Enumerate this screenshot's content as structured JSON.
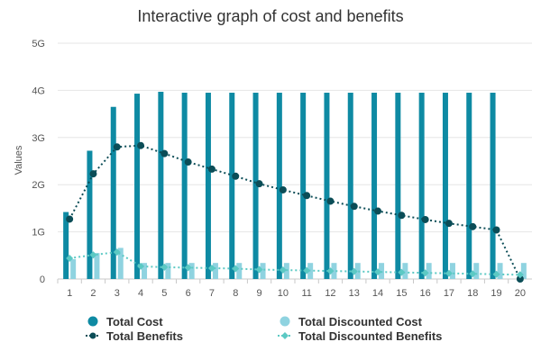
{
  "chart_data": {
    "type": "bar",
    "title": "Interactive graph of cost and benefits",
    "xlabel": "",
    "ylabel": "Values",
    "categories": [
      "1",
      "2",
      "3",
      "4",
      "5",
      "6",
      "7",
      "8",
      "9",
      "10",
      "11",
      "12",
      "13",
      "14",
      "15",
      "16",
      "17",
      "18",
      "19",
      "20"
    ],
    "y_ticks": [
      "0",
      "1G",
      "2G",
      "3G",
      "4G",
      "5G"
    ],
    "ylim": [
      0,
      5
    ],
    "y_unit": "G",
    "grid": true,
    "legend_position": "bottom",
    "series": [
      {
        "name": "Total Cost",
        "kind": "bar",
        "color": "#0e8aa3",
        "values": [
          1.42,
          2.72,
          3.65,
          3.93,
          3.97,
          3.95,
          3.95,
          3.95,
          3.95,
          3.95,
          3.95,
          3.95,
          3.95,
          3.95,
          3.95,
          3.95,
          3.95,
          3.95,
          3.95,
          null
        ]
      },
      {
        "name": "Total Discounted Cost",
        "kind": "bar",
        "color": "#8fd3e0",
        "values": [
          0.42,
          0.55,
          0.66,
          0.34,
          0.34,
          0.34,
          0.34,
          0.34,
          0.34,
          0.34,
          0.34,
          0.34,
          0.34,
          0.34,
          0.34,
          0.34,
          0.34,
          0.34,
          0.34,
          0.34
        ]
      },
      {
        "name": "Total Benefits",
        "kind": "line",
        "color": "#0b4d57",
        "values": [
          1.27,
          2.23,
          2.8,
          2.83,
          2.66,
          2.48,
          2.33,
          2.18,
          2.02,
          1.89,
          1.77,
          1.65,
          1.54,
          1.44,
          1.35,
          1.26,
          1.18,
          1.11,
          1.04,
          0.0
        ]
      },
      {
        "name": "Total Discounted Benefits",
        "kind": "line",
        "color": "#5cc9c4",
        "values": [
          0.44,
          0.51,
          0.57,
          0.27,
          0.25,
          0.24,
          0.23,
          0.22,
          0.2,
          0.19,
          0.18,
          0.17,
          0.16,
          0.15,
          0.14,
          0.13,
          0.12,
          0.11,
          0.1,
          0.09
        ]
      }
    ]
  }
}
